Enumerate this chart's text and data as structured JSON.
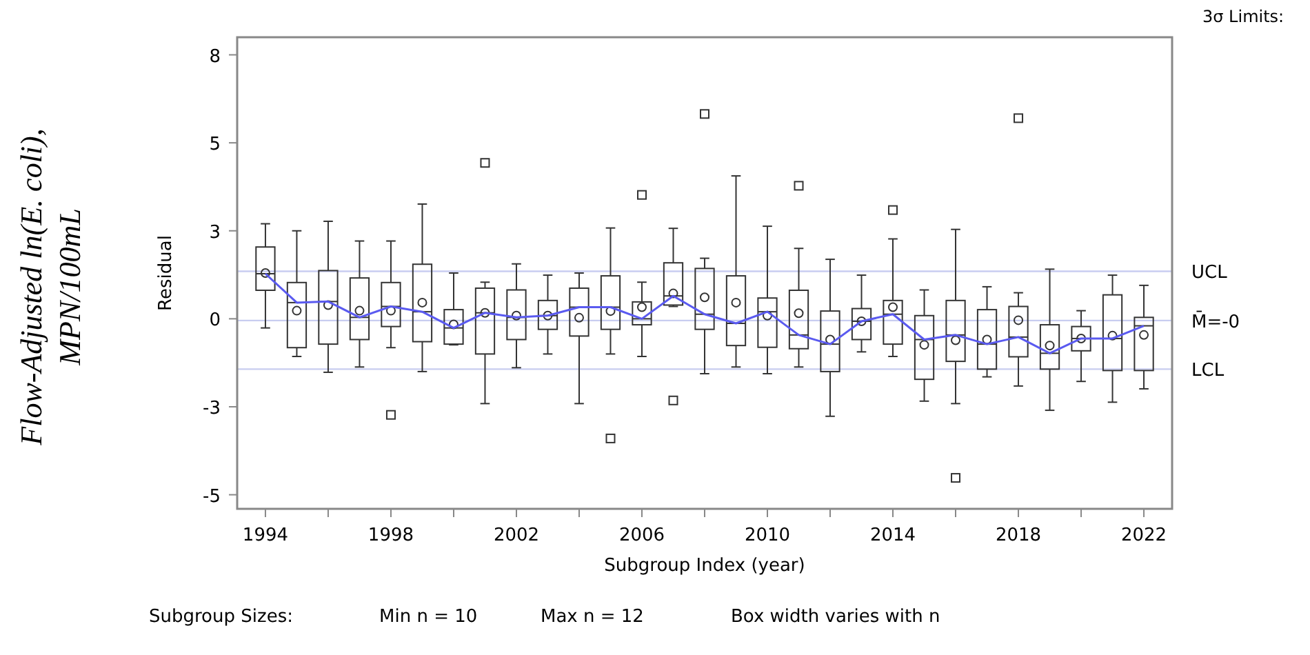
{
  "chart_data": {
    "type": "box",
    "xlabel": "Subgroup Index (year)",
    "ylabel": "Residual",
    "categories": [
      "1994",
      null,
      null,
      null,
      "1998",
      null,
      null,
      null,
      "2002",
      null,
      null,
      null,
      "2006",
      null,
      null,
      null,
      "2010",
      null,
      null,
      null,
      "2014",
      null,
      null,
      null,
      "2018",
      null,
      null,
      null,
      "2022"
    ],
    "ylim": [
      -5.4,
      8
    ],
    "yticks": [
      {
        "value": -5,
        "label": "-5"
      },
      {
        "value": -2.5,
        "label": "-3"
      },
      {
        "value": 0,
        "label": "0"
      },
      {
        "value": 2.5,
        "label": "3"
      },
      {
        "value": 5,
        "label": "5"
      },
      {
        "value": 7.5,
        "label": "8"
      }
    ],
    "grid": false,
    "boxes": [
      {
        "low": -0.26,
        "q1": 0.81,
        "median": 1.28,
        "q3": 2.04,
        "high": 2.7,
        "mean": 1.3
      },
      {
        "low": -1.07,
        "q1": -0.82,
        "median": 0.46,
        "q3": 1.03,
        "high": 2.5,
        "mean": 0.23
      },
      {
        "low": -1.52,
        "q1": -0.72,
        "median": 0.49,
        "q3": 1.37,
        "high": 2.77,
        "mean": 0.39
      },
      {
        "low": -1.37,
        "q1": -0.59,
        "median": 0.04,
        "q3": 1.16,
        "high": 2.21,
        "mean": 0.23
      },
      {
        "low": -0.82,
        "q1": -0.22,
        "median": 0.35,
        "q3": 1.03,
        "high": 2.21,
        "mean": 0.23,
        "outliers": [
          -2.73
        ]
      },
      {
        "low": -1.5,
        "q1": -0.65,
        "median": 0.2,
        "q3": 1.55,
        "high": 3.26,
        "mean": 0.46
      },
      {
        "low": -0.74,
        "q1": -0.72,
        "median": -0.26,
        "q3": 0.26,
        "high": 1.3,
        "mean": -0.16
      },
      {
        "low": -2.41,
        "q1": -1.0,
        "median": 0.17,
        "q3": 0.87,
        "high": 1.04,
        "mean": 0.17,
        "outliers": [
          4.43
        ]
      },
      {
        "low": -1.39,
        "q1": -0.59,
        "median": 0.04,
        "q3": 0.82,
        "high": 1.56,
        "mean": 0.09
      },
      {
        "low": -1.0,
        "q1": -0.3,
        "median": 0.09,
        "q3": 0.52,
        "high": 1.24,
        "mean": 0.09
      },
      {
        "low": -2.41,
        "q1": -0.49,
        "median": 0.33,
        "q3": 0.87,
        "high": 1.3,
        "mean": 0.03
      },
      {
        "low": -1.0,
        "q1": -0.3,
        "median": 0.33,
        "q3": 1.22,
        "high": 2.58,
        "mean": 0.22,
        "outliers": [
          -3.4
        ]
      },
      {
        "low": -1.07,
        "q1": -0.17,
        "median": 0.0,
        "q3": 0.48,
        "high": 1.04,
        "mean": 0.33,
        "outliers": [
          3.52
        ]
      },
      {
        "low": 0.35,
        "q1": 0.39,
        "median": 0.65,
        "q3": 1.59,
        "high": 2.57,
        "mean": 0.72,
        "outliers": [
          -2.32
        ]
      },
      {
        "low": -1.56,
        "q1": -0.3,
        "median": 0.13,
        "q3": 1.43,
        "high": 1.72,
        "mean": 0.61,
        "outliers": [
          5.82
        ]
      },
      {
        "low": -1.37,
        "q1": -0.76,
        "median": -0.13,
        "q3": 1.22,
        "high": 4.06,
        "mean": 0.46
      },
      {
        "low": -1.56,
        "q1": -0.81,
        "median": 0.2,
        "q3": 0.59,
        "high": 2.63,
        "mean": 0.09
      },
      {
        "low": -1.37,
        "q1": -0.85,
        "median": -0.46,
        "q3": 0.81,
        "high": 2.0,
        "mean": 0.16,
        "outliers": [
          3.78
        ]
      },
      {
        "low": -2.77,
        "q1": -1.5,
        "median": -0.72,
        "q3": 0.22,
        "high": 1.69,
        "mean": -0.59
      },
      {
        "low": -0.94,
        "q1": -0.59,
        "median": -0.07,
        "q3": 0.29,
        "high": 1.24,
        "mean": -0.07
      },
      {
        "low": -1.07,
        "q1": -0.72,
        "median": 0.13,
        "q3": 0.52,
        "high": 2.27,
        "mean": 0.33,
        "outliers": [
          3.09
        ]
      },
      {
        "low": -2.34,
        "q1": -1.72,
        "median": -0.59,
        "q3": 0.09,
        "high": 0.82,
        "mean": -0.74
      },
      {
        "low": -2.41,
        "q1": -1.21,
        "median": -0.46,
        "q3": 0.52,
        "high": 2.54,
        "mean": -0.61,
        "outliers": [
          -4.52
        ]
      },
      {
        "low": -1.65,
        "q1": -1.43,
        "median": -0.72,
        "q3": 0.26,
        "high": 0.91,
        "mean": -0.59
      },
      {
        "low": -1.91,
        "q1": -1.08,
        "median": -0.52,
        "q3": 0.35,
        "high": 0.74,
        "mean": -0.04,
        "outliers": [
          5.7
        ]
      },
      {
        "low": -2.6,
        "q1": -1.43,
        "median": -0.98,
        "q3": -0.17,
        "high": 1.41,
        "mean": -0.76
      },
      {
        "low": -1.78,
        "q1": -0.91,
        "median": -0.56,
        "q3": -0.22,
        "high": 0.23,
        "mean": -0.56
      },
      {
        "low": -2.37,
        "q1": -1.47,
        "median": -0.56,
        "q3": 0.68,
        "high": 1.24,
        "mean": -0.48
      },
      {
        "low": -1.99,
        "q1": -1.47,
        "median": -0.2,
        "q3": 0.04,
        "high": 0.95,
        "mean": -0.46
      }
    ],
    "series": [
      {
        "type": "line",
        "color": "#5a5af0",
        "values": [
          1.28,
          0.46,
          0.49,
          0.04,
          0.35,
          0.2,
          -0.26,
          0.17,
          0.04,
          0.09,
          0.33,
          0.33,
          0.0,
          0.65,
          0.13,
          -0.13,
          0.2,
          -0.46,
          -0.72,
          -0.07,
          0.13,
          -0.59,
          -0.46,
          -0.72,
          -0.52,
          -0.98,
          -0.56,
          -0.56,
          -0.2
        ]
      }
    ],
    "ref_lines": [
      {
        "axis": "y",
        "value": 1.35,
        "label": "UCL",
        "color": "#c8cdf0"
      },
      {
        "axis": "y",
        "value": -0.05,
        "label": "M̄=-0",
        "color": "#c8cdf0"
      },
      {
        "axis": "y",
        "value": -1.43,
        "label": "LCL",
        "color": "#c8cdf0"
      }
    ],
    "annotations": [
      "3σ Limits:",
      "Subgroup Sizes:",
      "Min n = 10",
      "Max n = 12",
      "Box width varies with n",
      "Flow-Adjusted ln(E. coli), MPN/100mL"
    ]
  }
}
